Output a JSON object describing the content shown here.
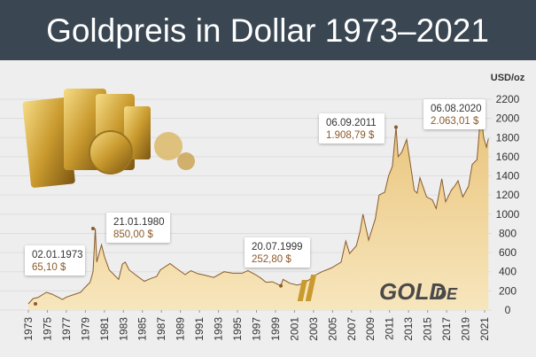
{
  "chart_data": {
    "type": "area",
    "title": "Goldpreis in Dollar 1973–2021",
    "y_axis_label": "USD/oz",
    "logo": [
      "GOLD",
      ".DE"
    ],
    "x": [
      1973.0,
      1973.5,
      1974.0,
      1974.9,
      1975.5,
      1976.6,
      1977.0,
      1977.9,
      1978.5,
      1978.9,
      1979.5,
      1979.8,
      1980.05,
      1980.2,
      1980.7,
      1981.0,
      1981.5,
      1982.5,
      1982.9,
      1983.2,
      1983.6,
      1984.5,
      1985.2,
      1985.9,
      1986.5,
      1986.9,
      1987.9,
      1988.5,
      1989.5,
      1990.1,
      1990.8,
      1991.5,
      1992.5,
      1993.6,
      1994.5,
      1995.5,
      1996.1,
      1996.9,
      1997.5,
      1998.0,
      1998.7,
      1999.55,
      1999.8,
      2000.5,
      2001.3,
      2002.0,
      2002.6,
      2003.1,
      2003.9,
      2004.9,
      2005.9,
      2006.4,
      2006.8,
      2007.5,
      2007.9,
      2008.2,
      2008.8,
      2009.5,
      2009.9,
      2010.5,
      2010.9,
      2011.3,
      2011.68,
      2011.9,
      2012.3,
      2012.8,
      2013.3,
      2013.6,
      2013.9,
      2014.2,
      2014.9,
      2015.5,
      2015.9,
      2016.5,
      2016.9,
      2017.5,
      2017.9,
      2018.2,
      2018.7,
      2019.3,
      2019.7,
      2020.2,
      2020.6,
      2020.9,
      2021.2,
      2021.4
    ],
    "series": [
      {
        "color": "#8a5a2b",
        "values": [
          65,
          120,
          130,
          185,
          165,
          110,
          135,
          165,
          185,
          230,
          290,
          400,
          850,
          500,
          680,
          560,
          420,
          320,
          480,
          500,
          420,
          350,
          300,
          330,
          350,
          420,
          485,
          440,
          370,
          410,
          380,
          365,
          340,
          400,
          385,
          385,
          410,
          370,
          330,
          290,
          295,
          253,
          320,
          280,
          260,
          280,
          320,
          360,
          400,
          440,
          500,
          720,
          590,
          670,
          820,
          1000,
          730,
          950,
          1200,
          1230,
          1400,
          1500,
          1909,
          1600,
          1650,
          1780,
          1450,
          1250,
          1220,
          1380,
          1180,
          1150,
          1060,
          1370,
          1130,
          1250,
          1300,
          1350,
          1180,
          1290,
          1520,
          1570,
          2063,
          1800,
          1700,
          1790
        ]
      }
    ],
    "xlim": [
      1972.8,
      2021.5
    ],
    "xticks": [
      1973,
      1975,
      1977,
      1979,
      1981,
      1983,
      1985,
      1987,
      1989,
      1991,
      1993,
      1995,
      1997,
      1999,
      2001,
      2003,
      2005,
      2007,
      2009,
      2011,
      2013,
      2015,
      2017,
      2019,
      2021
    ],
    "ylim": [
      0,
      2200
    ],
    "yticks": [
      0,
      200,
      400,
      600,
      800,
      1000,
      1200,
      1400,
      1600,
      1800,
      2000,
      2200
    ],
    "grid": true,
    "annotations": [
      {
        "date": "02.01.1973",
        "value": 65.1,
        "value_label": "65,10 $"
      },
      {
        "date": "21.01.1980",
        "value": 850,
        "value_label": "850,00 $"
      },
      {
        "date": "20.07.1999",
        "value": 252.8,
        "value_label": "252,80 $"
      },
      {
        "date": "06.09.2011",
        "value": 1908.79,
        "value_label": "1.908,79 $"
      },
      {
        "date": "06.08.2020",
        "value": 2063.01,
        "value_label": "2.063,01 $"
      }
    ]
  }
}
